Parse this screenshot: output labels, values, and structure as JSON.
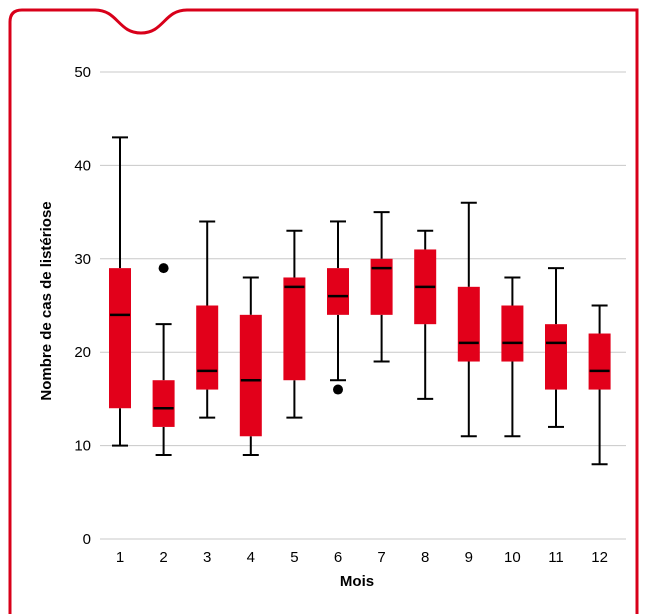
{
  "chart_data": {
    "type": "boxplot",
    "xlabel": "Mois",
    "ylabel": "Nombre de cas de listériose",
    "ylim": [
      0,
      50
    ],
    "yticks": [
      0,
      10,
      20,
      30,
      40,
      50
    ],
    "grid": true,
    "categories": [
      "1",
      "2",
      "3",
      "4",
      "5",
      "6",
      "7",
      "8",
      "9",
      "10",
      "11",
      "12"
    ],
    "boxes": [
      {
        "min": 10,
        "q1": 14,
        "median": 24,
        "q3": 29,
        "max": 43,
        "outliers": []
      },
      {
        "min": 9,
        "q1": 12,
        "median": 14,
        "q3": 17,
        "max": 23,
        "outliers": [
          29
        ]
      },
      {
        "min": 13,
        "q1": 16,
        "median": 18,
        "q3": 25,
        "max": 34,
        "outliers": []
      },
      {
        "min": 9,
        "q1": 11,
        "median": 17,
        "q3": 24,
        "max": 28,
        "outliers": []
      },
      {
        "min": 13,
        "q1": 17,
        "median": 27,
        "q3": 28,
        "max": 33,
        "outliers": []
      },
      {
        "min": 17,
        "q1": 24,
        "median": 26,
        "q3": 29,
        "max": 34,
        "outliers": [
          16
        ]
      },
      {
        "min": 19,
        "q1": 24,
        "median": 29,
        "q3": 30,
        "max": 35,
        "outliers": []
      },
      {
        "min": 15,
        "q1": 23,
        "median": 27,
        "q3": 31,
        "max": 33,
        "outliers": []
      },
      {
        "min": 11,
        "q1": 19,
        "median": 21,
        "q3": 27,
        "max": 36,
        "outliers": []
      },
      {
        "min": 11,
        "q1": 19,
        "median": 21,
        "q3": 25,
        "max": 28,
        "outliers": []
      },
      {
        "min": 12,
        "q1": 16,
        "median": 21,
        "q3": 23,
        "max": 29,
        "outliers": []
      },
      {
        "min": 8,
        "q1": 16,
        "median": 18,
        "q3": 22,
        "max": 25,
        "outliers": []
      }
    ],
    "colors": {
      "box_fill": "#e2001a",
      "frame": "#d8001a",
      "whisker": "#000000",
      "median": "#000000",
      "grid": "#c8c8c8"
    }
  }
}
